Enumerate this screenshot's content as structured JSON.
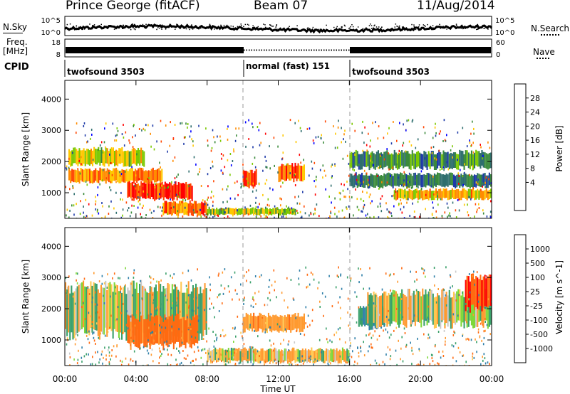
{
  "header": {
    "station": "Prince George (fitACF)",
    "beam": "Beam 07",
    "date": "11/Aug/2014"
  },
  "side_labels": {
    "nsky": "N.Sky",
    "nsearch": "N.Search",
    "freq_line1": "Freq.",
    "freq_line2": "[MHz]",
    "nave": "Nave",
    "cpid": "CPID"
  },
  "top_axes": {
    "noise_left_ticks": [
      "10^5",
      "10^0"
    ],
    "noise_right_ticks": [
      "10^5",
      "10^0"
    ],
    "freq_left_ticks": [
      "18",
      "8"
    ],
    "nave_right_ticks": [
      "60",
      "0"
    ]
  },
  "cpid_segments": [
    {
      "label": "twofsound 3503",
      "start_h": 0,
      "end_h": 10
    },
    {
      "label": "normal (fast) 151",
      "start_h": 10,
      "end_h": 16
    },
    {
      "label": "twofsound 3503",
      "start_h": 16,
      "end_h": 24
    }
  ],
  "x_axis": {
    "label": "Time UT",
    "ticks": [
      "00:00",
      "04:00",
      "08:00",
      "12:00",
      "16:00",
      "20:00",
      "00:00"
    ],
    "range_h": [
      0,
      24
    ]
  },
  "power_colorbar": {
    "label": "Power [dB]",
    "ticks": [
      "28",
      "24",
      "20",
      "16",
      "12",
      "8",
      "4"
    ],
    "colors": [
      "#ff0000",
      "#ff4500",
      "#ff8c00",
      "#ffc800",
      "#7bc800",
      "#3a8a3a",
      "#2e6e6e",
      "#1e3aa8",
      "#0000ff"
    ]
  },
  "velocity_colorbar": {
    "label": "Velocity [m s^-1]",
    "ticks": [
      "1000",
      "500",
      "100",
      "25",
      "-25",
      "-100",
      "-500",
      "-1000"
    ],
    "colors": [
      "#1c4cb4",
      "#2e7fa8",
      "#3aa06a",
      "#7ed83a",
      "#c8c8c8",
      "#ffc850",
      "#ff9a30",
      "#ff6a10",
      "#ff0000"
    ]
  },
  "chart_data": [
    {
      "type": "heatmap",
      "title": "Power",
      "ylabel": "Slant Range [km]",
      "xlabel": "Time UT",
      "yticks": [
        "4000",
        "3000",
        "2000",
        "1000"
      ],
      "xlim": [
        0,
        24
      ],
      "ylim": [
        180,
        4600
      ],
      "zlim": [
        0,
        30
      ],
      "zunit": "dB",
      "features": [
        {
          "t0": 0.2,
          "t1": 4.5,
          "r0": 1900,
          "r1": 2400,
          "z": 18
        },
        {
          "t0": 0.2,
          "t1": 5.5,
          "r0": 1350,
          "r1": 1750,
          "z": 22
        },
        {
          "t0": 3.5,
          "t1": 7.2,
          "r0": 800,
          "r1": 1300,
          "z": 28
        },
        {
          "t0": 5.5,
          "t1": 8.0,
          "r0": 300,
          "r1": 700,
          "z": 24
        },
        {
          "t0": 10.0,
          "t1": 10.8,
          "r0": 1200,
          "r1": 1700,
          "z": 26
        },
        {
          "t0": 12.0,
          "t1": 13.5,
          "r0": 1400,
          "r1": 1900,
          "z": 24
        },
        {
          "t0": 16.0,
          "t1": 24.0,
          "r0": 1800,
          "r1": 2300,
          "z": 10
        },
        {
          "t0": 16.0,
          "t1": 24.0,
          "r0": 1200,
          "r1": 1600,
          "z": 8
        },
        {
          "t0": 18.5,
          "t1": 24.0,
          "r0": 800,
          "r1": 1100,
          "z": 20
        },
        {
          "t0": 8.0,
          "t1": 13.0,
          "r0": 300,
          "r1": 500,
          "z": 16
        }
      ]
    },
    {
      "type": "heatmap",
      "title": "Velocity",
      "ylabel": "Slant Range [km]",
      "xlabel": "Time UT",
      "yticks": [
        "4000",
        "3000",
        "2000",
        "1000"
      ],
      "xlim": [
        0,
        24
      ],
      "ylim": [
        180,
        4600
      ],
      "zlim": [
        -1000,
        1000
      ],
      "zunit": "m s^-1",
      "features": [
        {
          "t0": 0.0,
          "t1": 8.0,
          "r0": 1200,
          "r1": 2700,
          "z": 0
        },
        {
          "t0": 3.5,
          "t1": 7.5,
          "r0": 800,
          "r1": 1700,
          "z": -400
        },
        {
          "t0": 10.0,
          "t1": 13.5,
          "r0": 1300,
          "r1": 1800,
          "z": -200
        },
        {
          "t0": 8.0,
          "t1": 16.0,
          "r0": 300,
          "r1": 700,
          "z": -60
        },
        {
          "t0": 16.5,
          "t1": 18.0,
          "r0": 1400,
          "r1": 2000,
          "z": 400
        },
        {
          "t0": 17.0,
          "t1": 24.0,
          "r0": 1500,
          "r1": 2500,
          "z": 0
        },
        {
          "t0": 22.5,
          "t1": 24.0,
          "r0": 2000,
          "r1": 3000,
          "z": -700
        }
      ]
    }
  ]
}
